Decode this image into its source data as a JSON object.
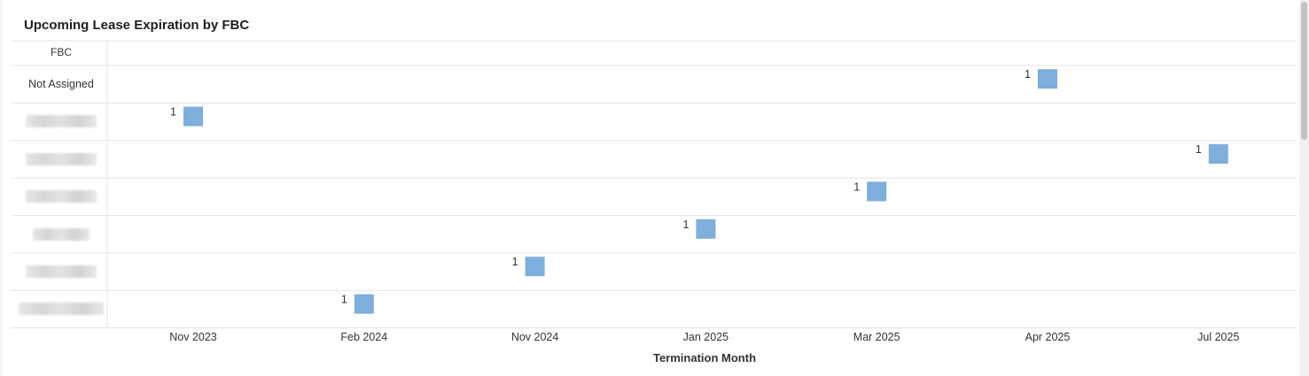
{
  "title": "Upcoming Lease Expiration by FBC",
  "row_header": "FBC",
  "chart_data": {
    "type": "scatter",
    "title": "Upcoming Lease Expiration by FBC",
    "xlabel": "Termination Month",
    "ylabel": "FBC",
    "categories_x": [
      "Nov 2023",
      "Feb 2024",
      "Nov 2024",
      "Jan 2025",
      "Mar 2025",
      "Apr 2025",
      "Jul 2025"
    ],
    "categories_y": [
      "Not Assigned",
      "",
      "",
      "",
      "",
      "",
      ""
    ],
    "points": [
      {
        "y_index": 0,
        "x": "Apr 2025",
        "value": 1
      },
      {
        "y_index": 1,
        "x": "Nov 2023",
        "value": 1
      },
      {
        "y_index": 2,
        "x": "Jul 2025",
        "value": 1
      },
      {
        "y_index": 3,
        "x": "Mar 2025",
        "value": 1
      },
      {
        "y_index": 4,
        "x": "Jan 2025",
        "value": 1
      },
      {
        "y_index": 5,
        "x": "Nov 2024",
        "value": 1
      },
      {
        "y_index": 6,
        "x": "Feb 2024",
        "value": 1
      }
    ],
    "color": "#7eaedb",
    "grid": true
  }
}
